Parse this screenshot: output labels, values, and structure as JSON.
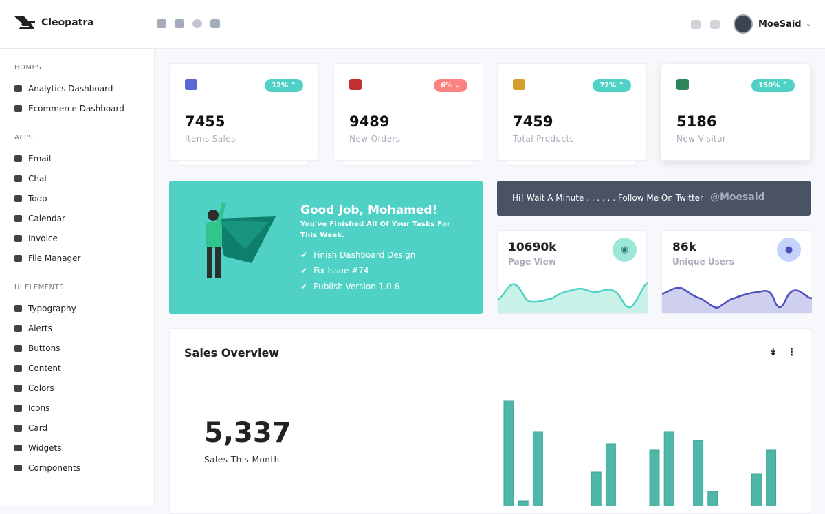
{
  "header": {
    "brand": "Cleopatra",
    "icons": [
      "email-icon",
      "chat-icon",
      "check-icon",
      "calendar-icon"
    ],
    "right_icons": [
      "messages-icon",
      "notifications-icon"
    ],
    "user": "MoeSaid"
  },
  "sidebar": {
    "sections": [
      {
        "title": "HOMES",
        "items": [
          "Analytics Dashboard",
          "Ecommerce Dashboard"
        ]
      },
      {
        "title": "APPS",
        "items": [
          "Email",
          "Chat",
          "Todo",
          "Calendar",
          "Invoice",
          "File Manager"
        ]
      },
      {
        "title": "UI ELEMENTS",
        "items": [
          "Typography",
          "Alerts",
          "Buttons",
          "Content",
          "Colors",
          "Icons",
          "Card",
          "Widgets",
          "Components"
        ]
      }
    ]
  },
  "stats": [
    {
      "value": "7455",
      "label": "Items Sales",
      "badge": "12%",
      "trend": "up",
      "badge_color": "#4fd1c5",
      "icon": "cart-icon",
      "icon_color": "#5a67d8"
    },
    {
      "value": "9489",
      "label": "New Orders",
      "badge": "6%",
      "trend": "down",
      "badge_color": "#fc8181",
      "icon": "store-icon",
      "icon_color": "#c53030"
    },
    {
      "value": "7459",
      "label": "Total Products",
      "badge": "72%",
      "trend": "up",
      "badge_color": "#4fd1c5",
      "icon": "sitemap-icon",
      "icon_color": "#d69e2e"
    },
    {
      "value": "5186",
      "label": "New Visitor",
      "badge": "150%",
      "trend": "up",
      "badge_color": "#4fd1c5",
      "icon": "users-icon",
      "icon_color": "#2f855a"
    }
  ],
  "hero": {
    "title": "Good Job, Mohamed!",
    "subtitle": "You've Finished All Of Your Tasks For This Week.",
    "tasks": [
      "Finish Dashboard Design",
      "Fix Issue #74",
      "Publish Version 1.0.6"
    ]
  },
  "banner": {
    "text": "Hi! Wait A Minute . . . . . . Follow Me On Twitter",
    "handle": "@Moesaid"
  },
  "mini": [
    {
      "value": "10690k",
      "label": "Page View",
      "icon": "eye-icon",
      "color": "#4fd1c5"
    },
    {
      "value": "86k",
      "label": "Unique Users",
      "icon": "users-icon",
      "color": "#4c51bf"
    }
  ],
  "sales": {
    "title": "Sales Overview",
    "value": "5,337",
    "label": "Sales This Month"
  },
  "chart_data": {
    "type": "bar",
    "values": [
      177,
      31,
      132,
      0,
      0,
      0,
      73,
      114,
      0,
      0,
      105,
      132,
      0,
      119,
      45,
      0,
      0,
      70,
      105
    ],
    "color": "#4fb7a8"
  }
}
